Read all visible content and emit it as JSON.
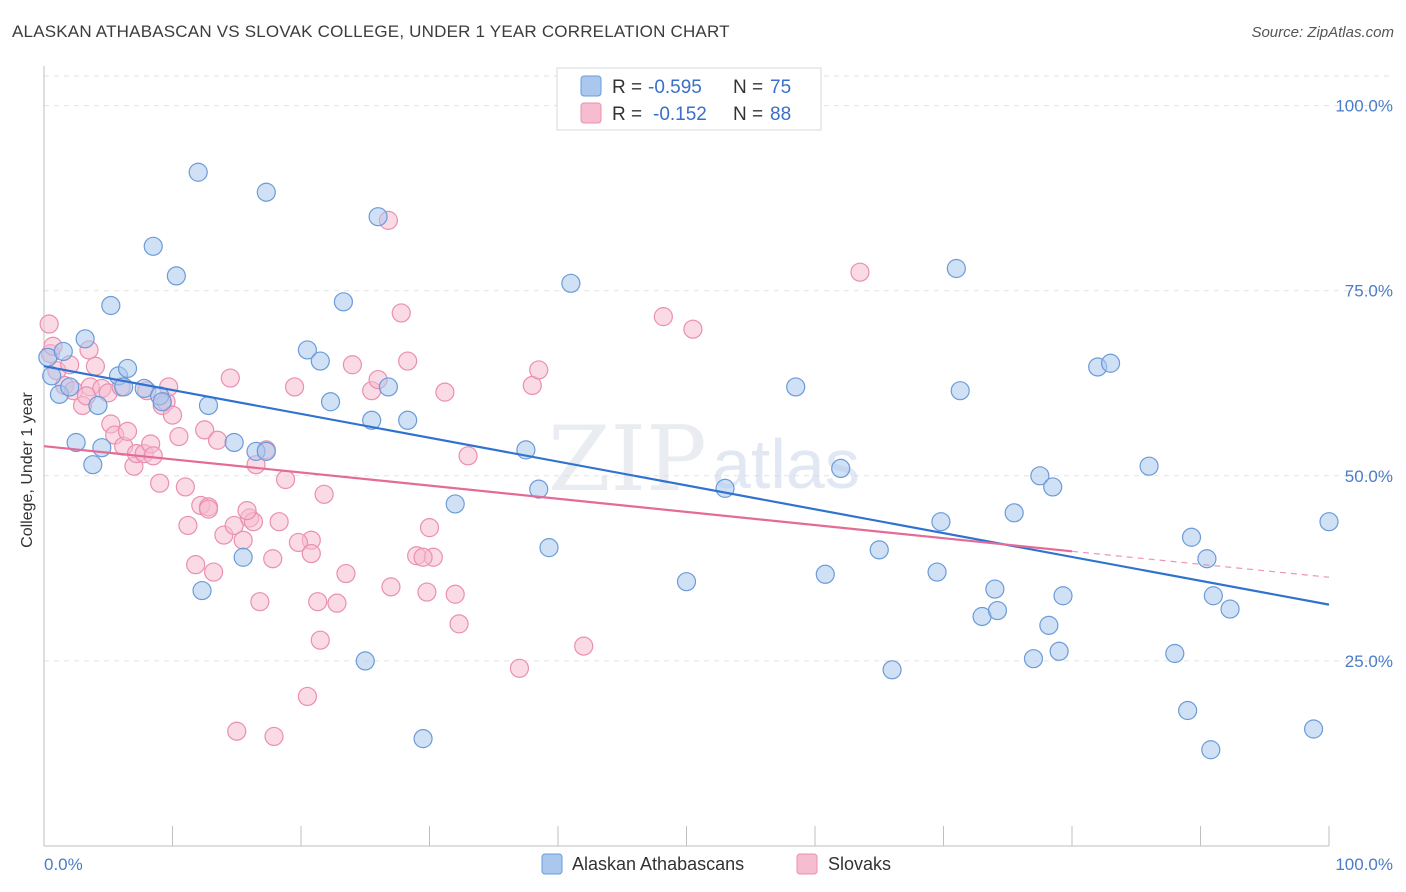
{
  "title": "ALASKAN ATHABASCAN VS SLOVAK COLLEGE, UNDER 1 YEAR CORRELATION CHART",
  "source": "Source: ZipAtlas.com",
  "watermark": {
    "zip": "ZIP",
    "atlas": "atlas"
  },
  "chart_data": {
    "type": "scatter",
    "xlabel": "",
    "ylabel": "College, Under 1 year",
    "xlim": [
      0,
      100
    ],
    "ylim": [
      0,
      104
    ],
    "x_tick_labels": {
      "min": "0.0%",
      "max": "100.0%"
    },
    "y_ticks": [
      25,
      50,
      75,
      100
    ],
    "y_tick_labels": [
      "25.0%",
      "50.0%",
      "75.0%",
      "100.0%"
    ],
    "grid": true,
    "legend_placement": "top-center",
    "stats": [
      {
        "r_label": "R = ",
        "r": "-0.595",
        "n_label": "N = ",
        "n": "75"
      },
      {
        "r_label": "R = ",
        "r": "-0.152",
        "n_label": "N = ",
        "n": "88"
      }
    ],
    "colors": {
      "blue_fill": "#aac8ee",
      "blue_stroke": "#6b9bd8",
      "blue_line": "#2f72d0",
      "pink_fill": "#f6bcd0",
      "pink_stroke": "#ea8fb0",
      "pink_line": "#e46a98"
    },
    "series": [
      {
        "name": "Alaskan Athabascans",
        "trend": {
          "x0": 0,
          "y0": 64.8,
          "x1": 100,
          "y1": 32.6
        },
        "points": [
          [
            0.3,
            66
          ],
          [
            0.6,
            63.5
          ],
          [
            1.2,
            61
          ],
          [
            1.5,
            66.8
          ],
          [
            2.0,
            62
          ],
          [
            2.5,
            54.5
          ],
          [
            3.2,
            68.5
          ],
          [
            3.8,
            51.5
          ],
          [
            4.2,
            59.5
          ],
          [
            4.5,
            53.8
          ],
          [
            5.2,
            73
          ],
          [
            5.8,
            63.5
          ],
          [
            6.2,
            62
          ],
          [
            6.5,
            64.5
          ],
          [
            7.8,
            61.8
          ],
          [
            8.5,
            81
          ],
          [
            9.0,
            60.8
          ],
          [
            9.2,
            60
          ],
          [
            10.3,
            77
          ],
          [
            12.0,
            91
          ],
          [
            12.3,
            34.5
          ],
          [
            12.8,
            59.5
          ],
          [
            14.8,
            54.5
          ],
          [
            15.5,
            39
          ],
          [
            16.5,
            53.3
          ],
          [
            17.3,
            53.3
          ],
          [
            17.3,
            88.3
          ],
          [
            20.5,
            67
          ],
          [
            21.5,
            65.5
          ],
          [
            22.3,
            60
          ],
          [
            23.3,
            73.5
          ],
          [
            25.0,
            25
          ],
          [
            25.5,
            57.5
          ],
          [
            26.0,
            85
          ],
          [
            26.8,
            62
          ],
          [
            28.3,
            57.5
          ],
          [
            29.5,
            14.5
          ],
          [
            32.0,
            46.2
          ],
          [
            37.5,
            53.5
          ],
          [
            38.5,
            48.2
          ],
          [
            39.3,
            40.3
          ],
          [
            41.0,
            76
          ],
          [
            50.0,
            35.7
          ],
          [
            53.0,
            48.3
          ],
          [
            58.5,
            62
          ],
          [
            60.8,
            36.7
          ],
          [
            62.0,
            51
          ],
          [
            65.0,
            40
          ],
          [
            66.0,
            23.8
          ],
          [
            69.5,
            37
          ],
          [
            69.8,
            43.8
          ],
          [
            71.0,
            78
          ],
          [
            71.3,
            61.5
          ],
          [
            73.0,
            31
          ],
          [
            74.0,
            34.7
          ],
          [
            74.2,
            31.8
          ],
          [
            75.5,
            45
          ],
          [
            77.0,
            25.3
          ],
          [
            77.5,
            50
          ],
          [
            78.2,
            29.8
          ],
          [
            78.5,
            48.5
          ],
          [
            79.0,
            26.3
          ],
          [
            79.3,
            33.8
          ],
          [
            82.0,
            64.7
          ],
          [
            83.0,
            65.2
          ],
          [
            86.0,
            51.3
          ],
          [
            88.0,
            26
          ],
          [
            89.0,
            18.3
          ],
          [
            89.3,
            41.7
          ],
          [
            90.5,
            38.8
          ],
          [
            90.8,
            13
          ],
          [
            91.0,
            33.8
          ],
          [
            92.3,
            32
          ],
          [
            98.8,
            15.8
          ],
          [
            100,
            43.8
          ]
        ]
      },
      {
        "name": "Slovaks",
        "trend": {
          "x0": 0,
          "y0": 54.0,
          "x1": 80,
          "y1": 39.8,
          "dash_x1": 100,
          "dash_y1": 36.3
        },
        "points": [
          [
            0.4,
            70.5
          ],
          [
            0.5,
            66.5
          ],
          [
            0.7,
            67.5
          ],
          [
            1.0,
            64.2
          ],
          [
            1.6,
            62.2
          ],
          [
            2.0,
            65
          ],
          [
            2.3,
            61.5
          ],
          [
            3.0,
            59.5
          ],
          [
            3.5,
            67
          ],
          [
            3.6,
            62
          ],
          [
            4.0,
            64.8
          ],
          [
            4.5,
            61.8
          ],
          [
            5.0,
            61.2
          ],
          [
            5.2,
            57
          ],
          [
            5.5,
            55.5
          ],
          [
            6.0,
            62
          ],
          [
            6.2,
            54
          ],
          [
            6.5,
            56
          ],
          [
            7.0,
            51.3
          ],
          [
            7.2,
            53
          ],
          [
            7.8,
            53
          ],
          [
            8.0,
            61.5
          ],
          [
            8.3,
            54.3
          ],
          [
            8.5,
            52.7
          ],
          [
            9.0,
            49
          ],
          [
            9.2,
            59.5
          ],
          [
            9.5,
            60
          ],
          [
            9.7,
            62
          ],
          [
            10.0,
            58.2
          ],
          [
            10.5,
            55.3
          ],
          [
            11.0,
            48.5
          ],
          [
            11.2,
            43.3
          ],
          [
            11.8,
            38
          ],
          [
            12.2,
            46
          ],
          [
            12.5,
            56.2
          ],
          [
            12.8,
            45.8
          ],
          [
            13.2,
            37
          ],
          [
            13.5,
            54.8
          ],
          [
            14.0,
            42
          ],
          [
            14.5,
            63.2
          ],
          [
            14.8,
            43.3
          ],
          [
            15.0,
            15.5
          ],
          [
            15.5,
            41.3
          ],
          [
            16.0,
            44.3
          ],
          [
            16.3,
            43.8
          ],
          [
            16.5,
            51.5
          ],
          [
            16.8,
            33
          ],
          [
            17.3,
            53.5
          ],
          [
            17.8,
            38.8
          ],
          [
            17.9,
            14.8
          ],
          [
            18.3,
            43.8
          ],
          [
            18.8,
            49.5
          ],
          [
            19.5,
            62
          ],
          [
            20.5,
            20.2
          ],
          [
            20.8,
            41.3
          ],
          [
            21.3,
            33
          ],
          [
            21.5,
            27.8
          ],
          [
            21.8,
            47.5
          ],
          [
            23.5,
            36.8
          ],
          [
            24.0,
            65
          ],
          [
            25.5,
            61.5
          ],
          [
            26.0,
            63
          ],
          [
            26.8,
            84.5
          ],
          [
            27.0,
            35
          ],
          [
            27.8,
            72
          ],
          [
            28.3,
            65.5
          ],
          [
            29.0,
            39.2
          ],
          [
            29.8,
            34.3
          ],
          [
            30.0,
            43
          ],
          [
            30.3,
            39
          ],
          [
            31.2,
            61.3
          ],
          [
            32.0,
            34
          ],
          [
            32.3,
            30
          ],
          [
            33.0,
            52.7
          ],
          [
            37.0,
            24
          ],
          [
            38.0,
            62.2
          ],
          [
            38.5,
            64.3
          ],
          [
            42.0,
            27
          ],
          [
            48.2,
            71.5
          ],
          [
            50.5,
            69.8
          ],
          [
            63.5,
            77.5
          ],
          [
            29.5,
            39
          ],
          [
            19.8,
            41
          ],
          [
            22.8,
            32.8
          ],
          [
            15.8,
            45.3
          ],
          [
            12.8,
            45.5
          ],
          [
            20.8,
            39.5
          ],
          [
            3.3,
            60.8
          ]
        ]
      }
    ]
  }
}
